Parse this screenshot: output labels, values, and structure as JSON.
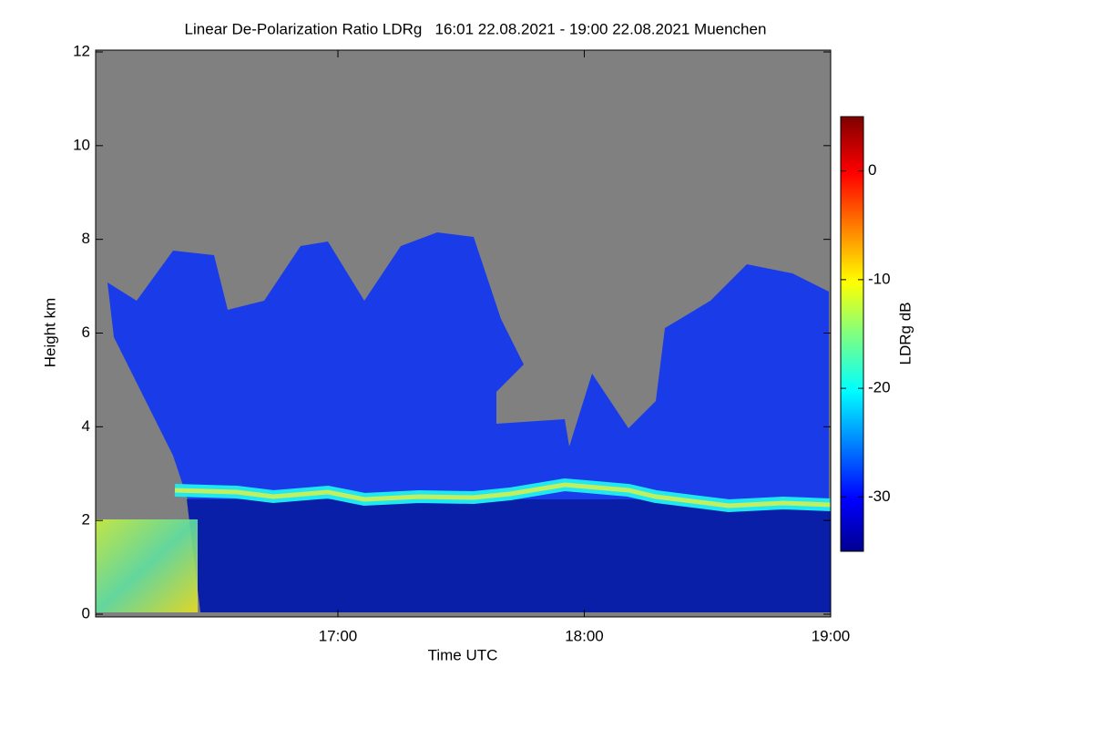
{
  "chart_data": {
    "type": "heatmap",
    "title": "Linear De-Polarization Ratio LDRg   16:01 22.08.2021 - 19:00 22.08.2021 Muenchen",
    "x_label": "Time UTC",
    "y_label": "Height km",
    "xlim": [
      "16:01",
      "19:00"
    ],
    "xticks": [
      "17:00",
      "18:00",
      "19:00"
    ],
    "ylim": [
      0,
      12
    ],
    "yticks": [
      0,
      2,
      4,
      6,
      8,
      10,
      12
    ],
    "colorbar": {
      "label": "LDRg dB",
      "zlim": [
        -35,
        5
      ],
      "zticks": [
        0,
        -10,
        -20,
        -30
      ],
      "colormap": "jet"
    }
  }
}
